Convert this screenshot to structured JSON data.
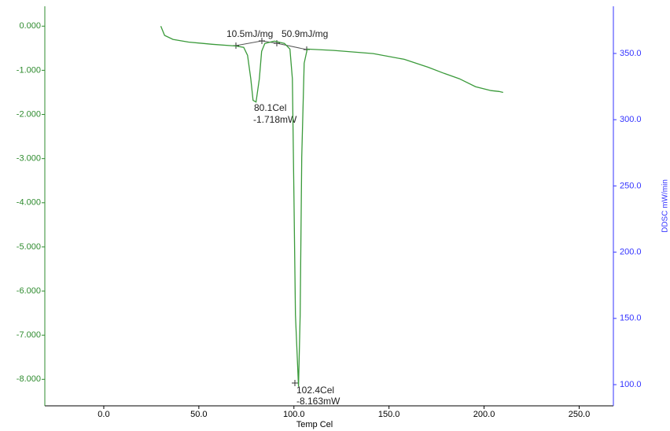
{
  "chart_data": {
    "type": "line",
    "xlabel": "Temp Cel",
    "y2label": "DDSC mW/min",
    "annotations": [
      "10.5mJ/mg",
      "50.9mJ/mg",
      "80.1Cel",
      "-1.718mW",
      "102.4Cel",
      "-8.163mW"
    ],
    "color": "#3a9a3a",
    "left_axis_color": "#2e8b2e",
    "right_axis_color": "#3333ff",
    "x": [
      30,
      32,
      36.4,
      44.6,
      57,
      69.4,
      73.6,
      75.6,
      77.3,
      78.5,
      80.1,
      81.8,
      83,
      84.7,
      89.7,
      95,
      97.9,
      99.2,
      100,
      100.8,
      102.4,
      103.3,
      104.1,
      105.4,
      107,
      121,
      141.7,
      158,
      170.6,
      179,
      187,
      195.5,
      203.7,
      207.9,
      210
    ],
    "values": [
      0.0,
      -0.21,
      -0.3,
      -0.36,
      -0.41,
      -0.45,
      -0.48,
      -0.66,
      -1.19,
      -1.68,
      -1.718,
      -1.19,
      -0.57,
      -0.39,
      -0.34,
      -0.39,
      -0.52,
      -1.19,
      -3.87,
      -6.54,
      -8.163,
      -6.54,
      -2.97,
      -0.84,
      -0.52,
      -0.55,
      -0.62,
      -0.75,
      -0.93,
      -1.07,
      -1.19,
      -1.37,
      -1.46,
      -1.48,
      -1.5
    ],
    "xlim": [
      -31,
      268
    ],
    "xticks": [
      {
        "value": 0,
        "label": "0.0"
      },
      {
        "value": 50,
        "label": "50.0"
      },
      {
        "value": 100,
        "label": "100.0"
      },
      {
        "value": 150,
        "label": "150.0"
      },
      {
        "value": 200,
        "label": "200.0"
      },
      {
        "value": 250,
        "label": "250.0"
      }
    ],
    "ylim": [
      -8.6,
      0.45
    ],
    "yticks": [
      {
        "value": 0,
        "label": "0.000"
      },
      {
        "value": -1,
        "label": "-1.000"
      },
      {
        "value": -2,
        "label": "-2.000"
      },
      {
        "value": -3,
        "label": "-3.000"
      },
      {
        "value": -4,
        "label": "-4.000"
      },
      {
        "value": -5,
        "label": "-5.000"
      },
      {
        "value": -6,
        "label": "-6.000"
      },
      {
        "value": -7,
        "label": "-7.000"
      },
      {
        "value": -8,
        "label": "-8.000"
      }
    ],
    "y2lim": [
      84,
      385.6
    ],
    "y2ticks": [
      {
        "value": 100,
        "label": "100.0"
      },
      {
        "value": 150,
        "label": "150.0"
      },
      {
        "value": 200,
        "label": "200.0"
      },
      {
        "value": 250,
        "label": "250.0"
      },
      {
        "value": 300,
        "label": "300.0"
      },
      {
        "value": 350,
        "label": "350.0"
      }
    ]
  }
}
